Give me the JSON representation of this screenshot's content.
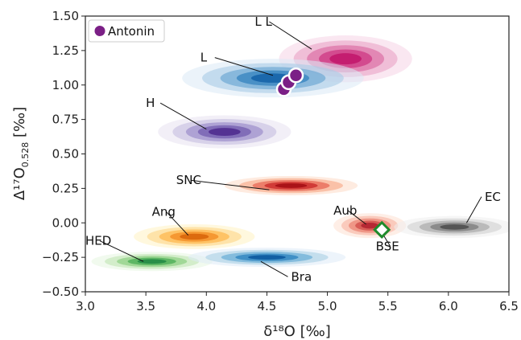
{
  "chart_data": {
    "type": "scatter",
    "title": "",
    "xlabel": "δ¹⁸O [‰]",
    "ylabel": "Δ¹⁷O",
    "ylabel_sub": "0.528",
    "ylabel_unit": " [‰]",
    "xlim": [
      3.0,
      6.5
    ],
    "ylim": [
      -0.5,
      1.5
    ],
    "x_ticks": [
      "3.0",
      "3.5",
      "4.0",
      "4.5",
      "5.0",
      "5.5",
      "6.0",
      "6.5"
    ],
    "y_ticks": [
      "−0.50",
      "−0.25",
      "0.00",
      "0.25",
      "0.50",
      "0.75",
      "1.00",
      "1.25",
      "1.50"
    ],
    "grid": false,
    "legend": {
      "position": "top-left",
      "entries": [
        {
          "name": "Antonin",
          "color": "#7b1f86"
        }
      ]
    },
    "density_groups": [
      {
        "name": "LL",
        "cx": 5.15,
        "cy": 1.19,
        "rx": 0.55,
        "ry": 0.17,
        "colors": [
          "#f6d4e6",
          "#e9a3c6",
          "#dc6fa5",
          "#cf3c86",
          "#c2186d"
        ]
      },
      {
        "name": "L",
        "cx": 4.55,
        "cy": 1.05,
        "rx": 0.75,
        "ry": 0.14,
        "colors": [
          "#dbe9f6",
          "#a9cce6",
          "#6faad4",
          "#3a86c0",
          "#1664a8"
        ]
      },
      {
        "name": "H",
        "cx": 4.15,
        "cy": 0.66,
        "rx": 0.55,
        "ry": 0.12,
        "colors": [
          "#e7e2f1",
          "#c5bde0",
          "#9d8fca",
          "#7660b0",
          "#4f2b8f"
        ]
      },
      {
        "name": "SNC",
        "cx": 4.7,
        "cy": 0.27,
        "rx": 0.55,
        "ry": 0.07,
        "colors": [
          "#fddbc7",
          "#f6a582",
          "#e66150",
          "#cb2a2a",
          "#a50f15"
        ]
      },
      {
        "name": "Aub",
        "cx": 5.35,
        "cy": -0.02,
        "rx": 0.3,
        "ry": 0.09,
        "colors": [
          "#fde0d2",
          "#f6b2a0",
          "#e9806f",
          "#d24e4a",
          "#b32230"
        ]
      },
      {
        "name": "EC",
        "cx": 6.05,
        "cy": -0.03,
        "rx": 0.5,
        "ry": 0.08,
        "colors": [
          "#eeeeee",
          "#d0d0d0",
          "#aaaaaa",
          "#808080",
          "#4f4f4f"
        ]
      },
      {
        "name": "Ang",
        "cx": 3.9,
        "cy": -0.1,
        "rx": 0.5,
        "ry": 0.09,
        "colors": [
          "#fff2c2",
          "#fed685",
          "#fdb54a",
          "#f28d25",
          "#d9660a"
        ]
      },
      {
        "name": "HED",
        "cx": 3.55,
        "cy": -0.28,
        "rx": 0.5,
        "ry": 0.07,
        "colors": [
          "#e5f5e0",
          "#bfe5b3",
          "#8ccf82",
          "#4daf58",
          "#238b45"
        ]
      },
      {
        "name": "Bra",
        "cx": 4.5,
        "cy": -0.25,
        "rx": 0.65,
        "ry": 0.07,
        "colors": [
          "#deebf7",
          "#a9cee4",
          "#6aaed6",
          "#2f84c0",
          "#0c5a9e"
        ]
      }
    ],
    "annotations": [
      {
        "text": "L L",
        "x": 4.4,
        "y": 1.43,
        "tx": 4.87,
        "ty": 1.26
      },
      {
        "text": "L",
        "x": 3.95,
        "y": 1.17,
        "tx": 4.55,
        "ty": 1.07
      },
      {
        "text": "H",
        "x": 3.5,
        "y": 0.84,
        "tx": 4.0,
        "ty": 0.68
      },
      {
        "text": "SNC",
        "x": 3.75,
        "y": 0.28,
        "tx": 4.52,
        "ty": 0.24
      },
      {
        "text": "Aub",
        "x": 5.05,
        "y": 0.06,
        "tx": 5.32,
        "ty": -0.01
      },
      {
        "text": "BSE",
        "x": 5.4,
        "y": -0.2,
        "tx": 5.45,
        "ty": -0.07
      },
      {
        "text": "EC",
        "x": 6.3,
        "y": 0.16,
        "tx": 6.15,
        "ty": 0.0
      },
      {
        "text": "Ang",
        "x": 3.55,
        "y": 0.05,
        "tx": 3.85,
        "ty": -0.09
      },
      {
        "text": "HED",
        "x": 3.0,
        "y": -0.16,
        "tx": 3.48,
        "ty": -0.28
      },
      {
        "text": "Bra",
        "x": 4.7,
        "y": -0.42,
        "tx": 4.45,
        "ty": -0.28
      }
    ],
    "points": {
      "Antonin": [
        {
          "x": 4.64,
          "y": 0.97
        },
        {
          "x": 4.68,
          "y": 1.02
        },
        {
          "x": 4.74,
          "y": 1.07
        }
      ],
      "BSE": [
        {
          "x": 5.45,
          "y": -0.05
        }
      ]
    },
    "colors": {
      "antonin": "#7b1f86",
      "bse": "#1f8a2b"
    }
  }
}
